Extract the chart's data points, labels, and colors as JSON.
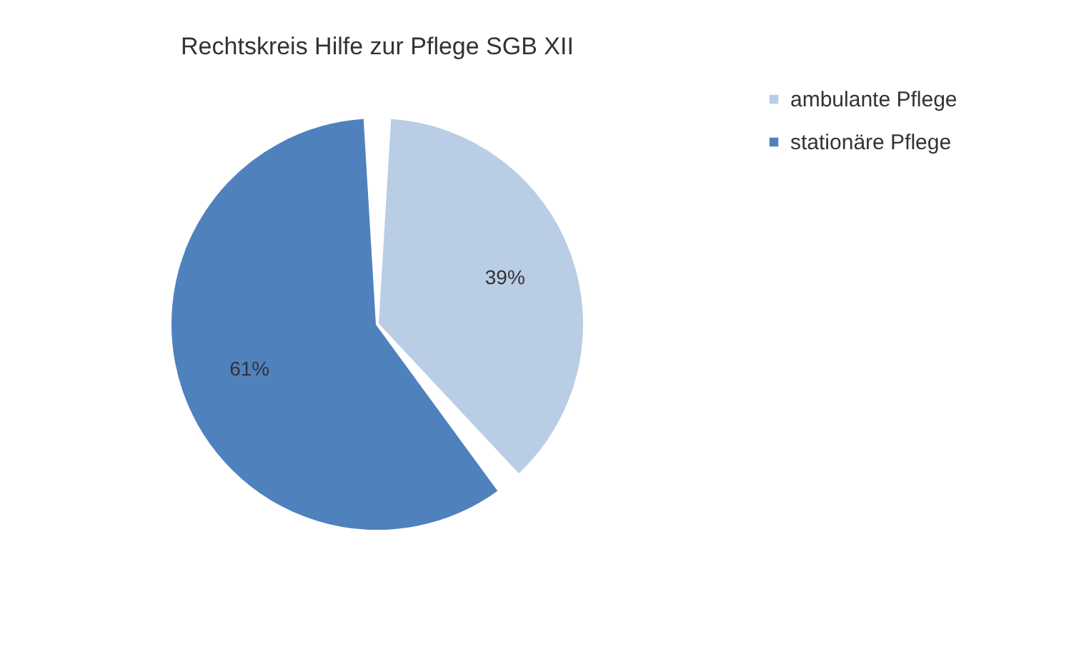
{
  "chart_data": {
    "type": "pie",
    "title": "Rechtskreis Hilfe zur Pflege SGB XII",
    "categories": [
      "ambulante Pflege",
      "stationäre Pflege"
    ],
    "values": [
      39,
      61
    ],
    "colors": [
      "#b9cde5",
      "#4f81bd"
    ],
    "value_labels": [
      "39%",
      "61%"
    ],
    "legend": "right"
  }
}
